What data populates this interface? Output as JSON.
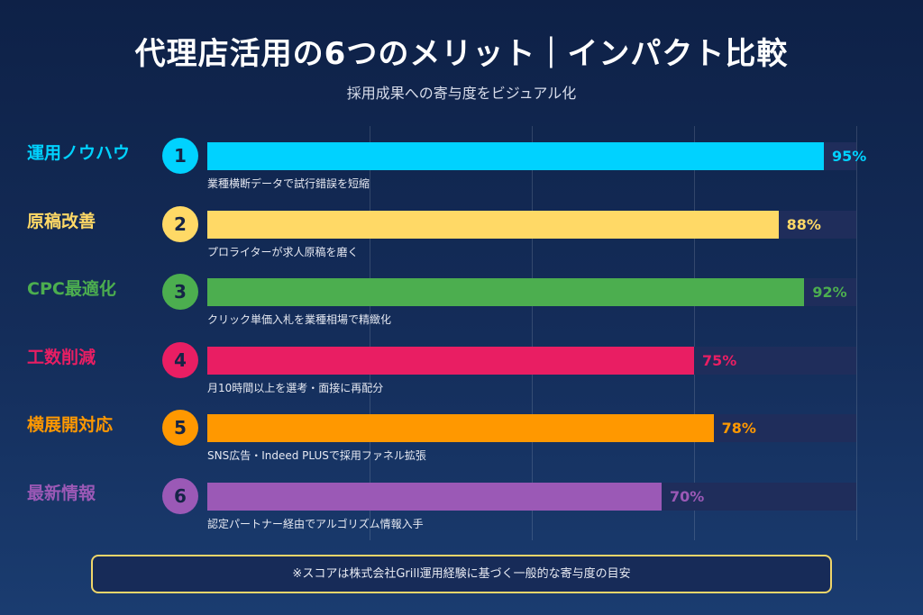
{
  "title": "代理店活用の6つのメリット｜インパクト比較",
  "subtitle": "採用成果への寄与度をビジュアル化",
  "footnote": "※スコアは株式会社Grill運用経験に基づく一般的な寄与度の目安",
  "colors": {
    "background": "#142d5a",
    "track": "#1f2d5b",
    "note_border": "#f0d66a"
  },
  "chart_data": {
    "type": "bar",
    "orientation": "horizontal",
    "xlim": [
      0,
      100
    ],
    "unit": "%",
    "grid": true,
    "items": [
      {
        "rank": "1",
        "label": "運用ノウハウ",
        "value": 95,
        "value_label": "95%",
        "description": "業種横断データで試行錯誤を短縮",
        "color": "#00d2ff"
      },
      {
        "rank": "2",
        "label": "原稿改善",
        "value": 88,
        "value_label": "88%",
        "description": "プロライターが求人原稿を磨く",
        "color": "#ffd966"
      },
      {
        "rank": "3",
        "label": "CPC最適化",
        "value": 92,
        "value_label": "92%",
        "description": "クリック単価入札を業種相場で精緻化",
        "color": "#4cae4f"
      },
      {
        "rank": "4",
        "label": "工数削減",
        "value": 75,
        "value_label": "75%",
        "description": "月10時間以上を選考・面接に再配分",
        "color": "#e91e63"
      },
      {
        "rank": "5",
        "label": "横展開対応",
        "value": 78,
        "value_label": "78%",
        "description": "SNS広告・Indeed PLUSで採用ファネル拡張",
        "color": "#ff9800"
      },
      {
        "rank": "6",
        "label": "最新情報",
        "value": 70,
        "value_label": "70%",
        "description": "認定パートナー経由でアルゴリズム情報入手",
        "color": "#9b59b6"
      }
    ]
  }
}
